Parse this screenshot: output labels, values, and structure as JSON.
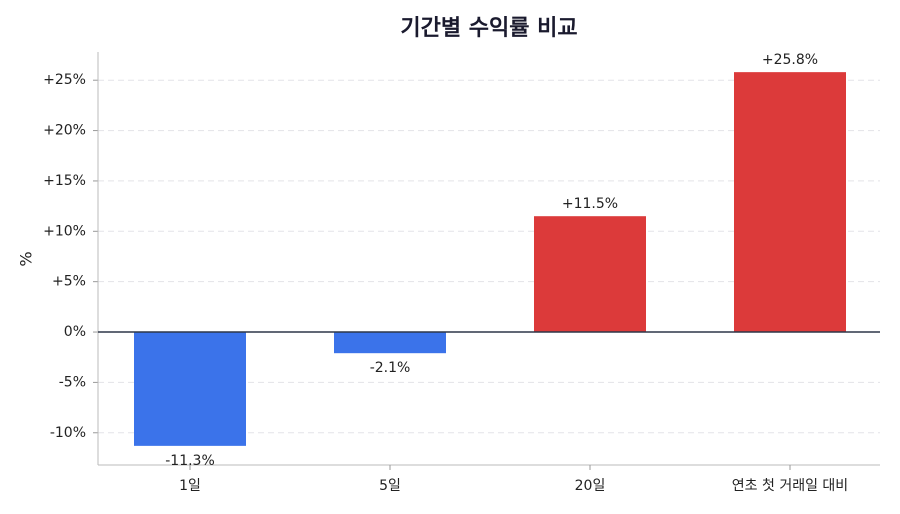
{
  "chart_data": {
    "type": "bar",
    "title": "기간별 수익률 비교",
    "y_label": "%",
    "categories": [
      "1일",
      "5일",
      "20일",
      "연초 첫 거래일 대비"
    ],
    "values": [
      -11.3,
      -2.1,
      11.5,
      25.8
    ],
    "value_labels": [
      "-11.3%",
      "-2.1%",
      "+11.5%",
      "+25.8%"
    ],
    "colors": [
      "#3b73ea",
      "#3b73ea",
      "#dc3a3a",
      "#dc3a3a"
    ],
    "ylim": [
      -13.2,
      27.8
    ],
    "yticks": [
      {
        "value": -10,
        "label": "-10%"
      },
      {
        "value": -5,
        "label": "-5%"
      },
      {
        "value": 0,
        "label": "0%"
      },
      {
        "value": 5,
        "label": "+5%"
      },
      {
        "value": 10,
        "label": "+10%"
      },
      {
        "value": 15,
        "label": "+15%"
      },
      {
        "value": 20,
        "label": "+20%"
      },
      {
        "value": 25,
        "label": "+25%"
      }
    ],
    "grid": true
  }
}
